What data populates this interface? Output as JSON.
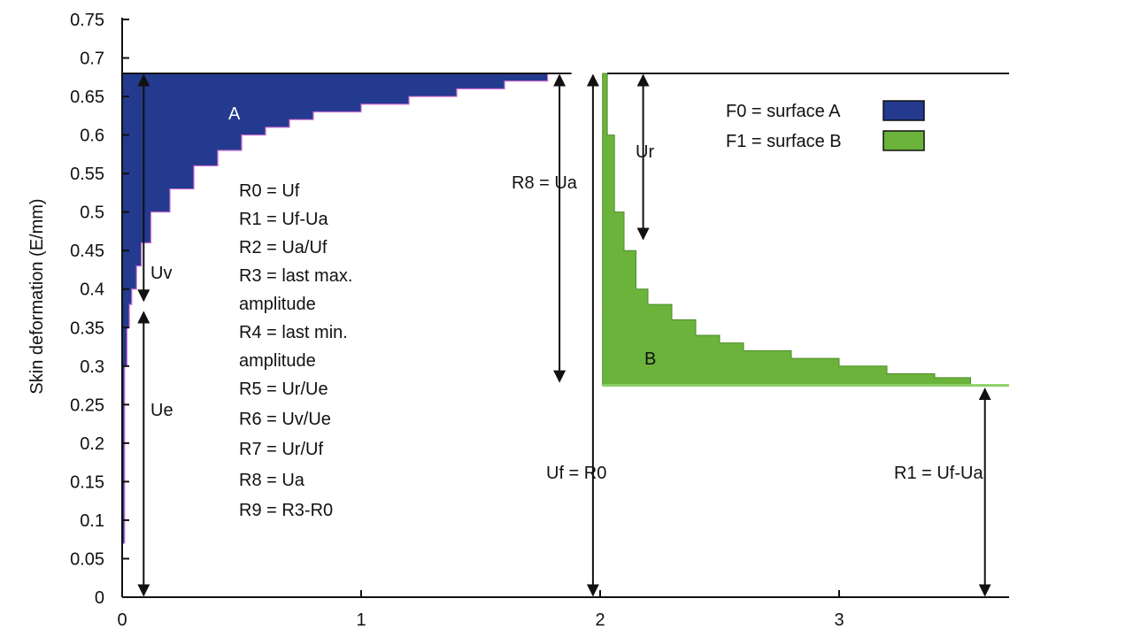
{
  "chart_data": {
    "type": "area",
    "ylabel": "Skin deformation (E/mm)",
    "xlabel": "",
    "xlim": [
      0,
      3.7
    ],
    "ylim": [
      0,
      0.75
    ],
    "xticks": [
      0,
      1,
      2,
      3
    ],
    "yticks": [
      0,
      0.05,
      0.1,
      0.15,
      0.2,
      0.25,
      0.3,
      0.35,
      0.4,
      0.45,
      0.5,
      0.55,
      0.6,
      0.65,
      0.7,
      0.75
    ],
    "grid": false,
    "legend_position": "top-right",
    "legend": [
      {
        "label": "F0 = surface A",
        "color": "#233a8e"
      },
      {
        "label": "F1 = surface B",
        "color": "#6bb33b"
      }
    ],
    "series": [
      {
        "color": "#233a8e",
        "x": [
          0,
          0.01,
          0.02,
          0.03,
          0.04,
          0.06,
          0.08,
          0.12,
          0.2,
          0.3,
          0.4,
          0.5,
          0.6,
          0.7,
          0.8,
          1.0,
          1.2,
          1.4,
          1.6,
          1.78
        ],
        "y": [
          0.07,
          0.3,
          0.35,
          0.38,
          0.4,
          0.43,
          0.46,
          0.5,
          0.53,
          0.56,
          0.58,
          0.6,
          0.61,
          0.62,
          0.63,
          0.64,
          0.65,
          0.66,
          0.67,
          0.68
        ]
      },
      {
        "color": "#6bb33b",
        "x": [
          2.01,
          2.03,
          2.06,
          2.1,
          2.15,
          2.2,
          2.3,
          2.4,
          2.5,
          2.6,
          2.8,
          3.0,
          3.2,
          3.4,
          3.55
        ],
        "y": [
          0.68,
          0.6,
          0.5,
          0.45,
          0.4,
          0.38,
          0.36,
          0.34,
          0.33,
          0.32,
          0.31,
          0.3,
          0.29,
          0.285,
          0.28
        ]
      }
    ],
    "ref_lines": {
      "max_y": 0.68,
      "min_y": 0.275
    },
    "annotations": {
      "area_a": "A",
      "area_b": "B",
      "uv": "Uv",
      "ue": "Ue",
      "ur": "Ur",
      "r8": "R8 = Ua",
      "uf": "Uf = R0",
      "r1": "R1 = Uf-Ua",
      "params": [
        "R0 = Uf",
        "R1 = Uf-Ua",
        "R2 = Ua/Uf",
        "R3 = last max.",
        "amplitude",
        "R4 = last min.",
        "amplitude",
        "R5 = Ur/Ue",
        "R6 = Uv/Ue",
        "R7 = Ur/Uf",
        "R8 = Ua",
        "R9 = R3-R0"
      ]
    }
  }
}
